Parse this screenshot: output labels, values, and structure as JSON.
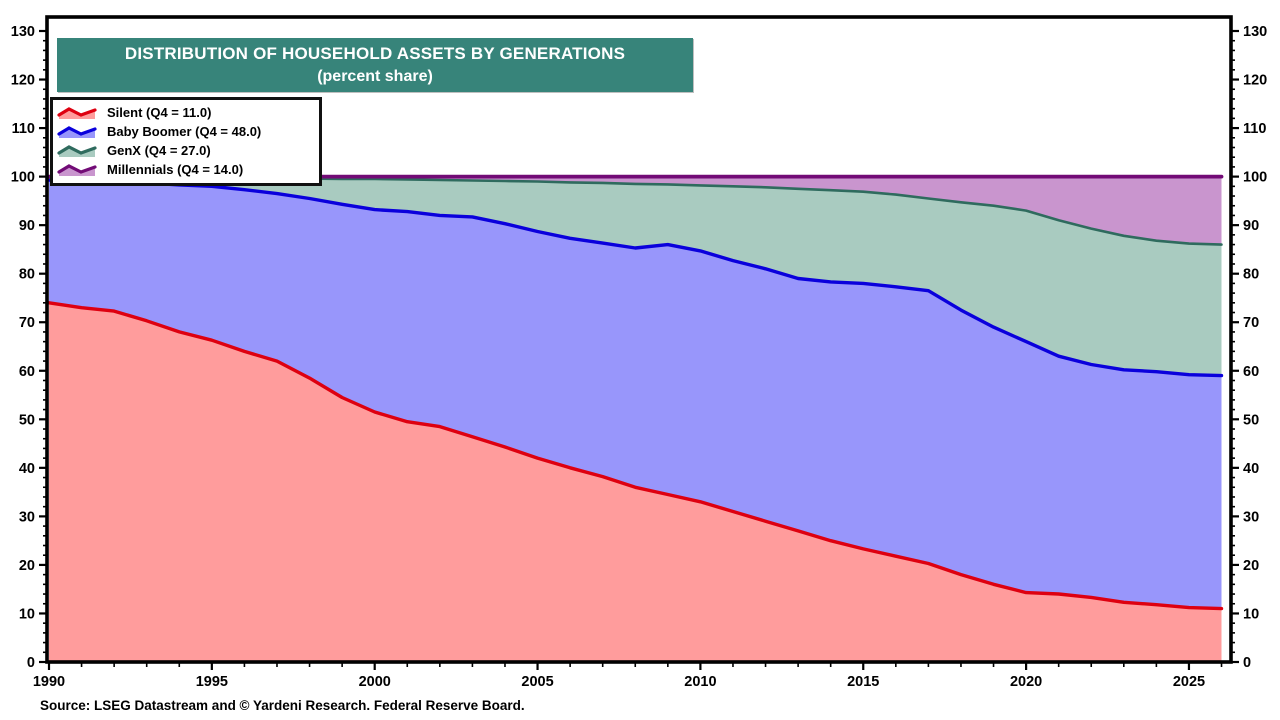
{
  "title": {
    "line1": "DISTRIBUTION OF HOUSEHOLD ASSETS BY GENERATIONS",
    "line2": "(percent share)"
  },
  "source": "Source: LSEG Datastream and © Yardeni Research. Federal Reserve Board.",
  "colors": {
    "background": "#FFFFFF",
    "title_bg": "#37847A",
    "title_text": "#FFFFFF",
    "axis": "#000000",
    "legend_border": "#111111"
  },
  "axes": {
    "y": {
      "min": 0,
      "max": 130,
      "major_step": 10,
      "minor_step": 2,
      "labels_both_sides": true,
      "major_labels": [
        "0",
        "10",
        "20",
        "30",
        "40",
        "50",
        "60",
        "70",
        "80",
        "90",
        "100",
        "110",
        "120",
        "130"
      ]
    },
    "x": {
      "min": 1990,
      "max": 2026.3,
      "major_ticks": [
        1990,
        1995,
        2000,
        2005,
        2010,
        2015,
        2020,
        2025
      ],
      "major_labels": [
        "1990",
        "1995",
        "2000",
        "2005",
        "2010",
        "2015",
        "2020",
        "2025"
      ],
      "minor_step": 1
    }
  },
  "chart_data": {
    "type": "area",
    "stacked": true,
    "total": 100,
    "title": "DISTRIBUTION OF HOUSEHOLD ASSETS BY GENERATIONS",
    "subtitle": "(percent share)",
    "xlabel": "",
    "ylabel": "",
    "xlim": [
      1990,
      2026.3
    ],
    "ylim": [
      0,
      130
    ],
    "grid": false,
    "legend_position": "top-left",
    "x": [
      1990,
      1991,
      1992,
      1993,
      1994,
      1995,
      1996,
      1997,
      1998,
      1999,
      2000,
      2001,
      2002,
      2003,
      2004,
      2005,
      2006,
      2007,
      2008,
      2009,
      2010,
      2011,
      2012,
      2013,
      2014,
      2015,
      2016,
      2017,
      2018,
      2019,
      2020,
      2021,
      2022,
      2023,
      2024,
      2025,
      2026
    ],
    "series": [
      {
        "name": "Silent",
        "legend_label": "Silent (Q4 = 11.0)",
        "q4_value": 11.0,
        "line_color": "#DE0010",
        "fill_color": "#FF9C9C",
        "line_width": 3.4,
        "values": [
          74.0,
          73.0,
          72.3,
          70.3,
          68.0,
          66.3,
          64.0,
          62.0,
          58.5,
          54.5,
          51.5,
          49.5,
          48.5,
          46.4,
          44.3,
          42.0,
          40.0,
          38.2,
          36.0,
          34.5,
          33.0,
          31.0,
          29.0,
          27.0,
          25.0,
          23.3,
          21.8,
          20.3,
          18.0,
          16.0,
          14.3,
          14.0,
          13.3,
          12.3,
          11.8,
          11.2,
          11.0
        ]
      },
      {
        "name": "Baby Boomer",
        "legend_label": "Baby Boomer (Q4 = 48.0)",
        "q4_value": 48.0,
        "line_color": "#0A00DC",
        "fill_color": "#9896FB",
        "line_width": 3.4,
        "values": [
          25.3,
          26.2,
          26.7,
          28.4,
          30.3,
          31.7,
          33.3,
          34.5,
          37.0,
          39.8,
          41.7,
          43.3,
          43.5,
          45.3,
          46.0,
          46.7,
          47.3,
          48.1,
          49.3,
          51.5,
          51.7,
          51.7,
          52.0,
          52.0,
          53.3,
          54.7,
          55.5,
          56.2,
          54.5,
          53.0,
          51.7,
          49.0,
          48.0,
          47.9,
          48.0,
          48.0,
          48.0
        ]
      },
      {
        "name": "GenX",
        "legend_label": "GenX (Q4 = 27.0)",
        "q4_value": 27.0,
        "line_color": "#2F6B5E",
        "fill_color": "#A9CBC0",
        "line_width": 2.6,
        "values": [
          0.5,
          0.6,
          0.8,
          1.1,
          1.4,
          1.7,
          2.4,
          3.1,
          4.1,
          5.2,
          6.3,
          6.6,
          7.3,
          7.5,
          8.8,
          10.3,
          11.5,
          12.4,
          13.2,
          12.4,
          13.5,
          15.3,
          16.8,
          18.5,
          18.9,
          18.9,
          19.0,
          19.0,
          22.2,
          25.0,
          27.0,
          28.0,
          28.0,
          27.6,
          27.0,
          27.0,
          27.0
        ]
      },
      {
        "name": "Millennials",
        "legend_label": "Millennials (Q4 = 14.0)",
        "q4_value": 14.0,
        "line_color": "#720B76",
        "fill_color": "#C995CE",
        "line_width": 3.8,
        "values": [
          0.2,
          0.2,
          0.2,
          0.2,
          0.3,
          0.3,
          0.3,
          0.4,
          0.4,
          0.5,
          0.5,
          0.6,
          0.7,
          0.8,
          0.9,
          1.0,
          1.2,
          1.3,
          1.5,
          1.6,
          1.8,
          2.0,
          2.2,
          2.5,
          2.8,
          3.1,
          3.7,
          4.5,
          5.3,
          6.0,
          7.0,
          9.0,
          10.7,
          12.2,
          13.2,
          13.8,
          14.0
        ]
      }
    ]
  }
}
